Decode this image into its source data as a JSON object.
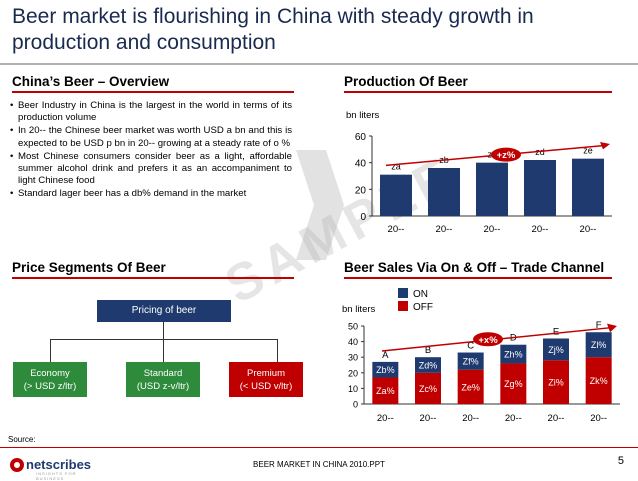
{
  "title": "Beer market is flourishing in China with steady growth in production and consumption",
  "overview": {
    "heading": "China’s Beer – Overview",
    "bullets": [
      "Beer Industry in China is the largest in the world in terms of its production volume",
      "In 20-- the Chinese beer market was worth USD a bn and this is expected to be USD p bn in 20-- growing at a steady rate of o %",
      "Most Chinese consumers consider beer as a light, affordable summer alcohol drink and prefers it as an accompaniment to light Chinese food",
      "Standard lager beer has a db% demand in the market"
    ]
  },
  "production": {
    "heading": "Production Of Beer",
    "unit": "bn liters",
    "growth_badge": "+z%"
  },
  "price_segments": {
    "heading": "Price Segments Of Beer",
    "root": "Pricing of beer",
    "segments": [
      {
        "name": "Economy",
        "range": "(> USD z/ltr)",
        "color": "#2e8b3c"
      },
      {
        "name": "Standard",
        "range": "(USD z-v/ltr)",
        "color": "#2e8b3c"
      },
      {
        "name": "Premium",
        "range": "(< USD v/ltr)",
        "color": "#c00000"
      }
    ]
  },
  "sales": {
    "heading": "Beer Sales Via On & Off – Trade Channel",
    "unit": "bn liters",
    "growth_badge": "+x%",
    "legend": [
      "ON",
      "OFF"
    ]
  },
  "watermark": "SAMPLE",
  "footer": {
    "source": "Source:",
    "center": "BEER MARKET IN CHINA 2010.PPT",
    "page": "5",
    "logo": "netscribes",
    "logo_tagline": "INSIGHTS FOR BUSINESS"
  },
  "colors": {
    "navy": "#1f3a6e",
    "red": "#c00000",
    "green": "#2e8b3c",
    "title": "#1a2a4f"
  },
  "chart_data": [
    {
      "type": "bar",
      "title": "Production Of Beer",
      "ylabel": "bn liters",
      "categories": [
        "20--",
        "20--",
        "20--",
        "20--",
        "20--"
      ],
      "values": [
        31,
        36,
        40,
        42,
        43
      ],
      "data_labels": [
        "za",
        "zb",
        "zc",
        "zd",
        "ze"
      ],
      "ylim": [
        0,
        60
      ],
      "yticks": [
        0,
        20,
        40,
        60
      ],
      "color": "#1f3a6e"
    },
    {
      "type": "bar",
      "stacked": true,
      "title": "Beer Sales Via On & Off – Trade Channel",
      "ylabel": "bn liters",
      "categories": [
        "20--",
        "20--",
        "20--",
        "20--",
        "20--",
        "20--"
      ],
      "top_labels": [
        "A",
        "B",
        "C",
        "D",
        "E",
        "F"
      ],
      "ylim": [
        0,
        50
      ],
      "yticks": [
        0,
        10,
        20,
        30,
        40,
        50
      ],
      "series": [
        {
          "name": "OFF",
          "color": "#c00000",
          "values": [
            17,
            20,
            22,
            26,
            28,
            30
          ],
          "labels": [
            "Za%",
            "Zc%",
            "Ze%",
            "Zg%",
            "Zi%",
            "Zk%"
          ]
        },
        {
          "name": "ON",
          "color": "#1f3a6e",
          "values": [
            10,
            10,
            11,
            12,
            14,
            16
          ],
          "labels": [
            "Zb%",
            "Zd%",
            "Zf%",
            "Zh%",
            "Zj%",
            "Zl%"
          ]
        }
      ]
    }
  ]
}
